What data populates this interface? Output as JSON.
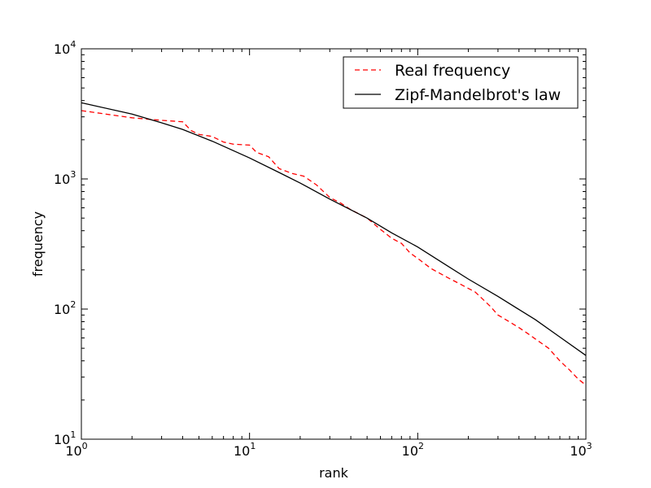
{
  "chart_data": {
    "type": "line",
    "title": "",
    "xlabel": "rank",
    "ylabel": "frequency",
    "xscale": "log",
    "yscale": "log",
    "xlim": [
      1,
      1000
    ],
    "ylim": [
      10,
      10000
    ],
    "grid": false,
    "legend_position": "top-right",
    "x_ticks": [
      {
        "value": 1,
        "base": "10",
        "exp": "0"
      },
      {
        "value": 10,
        "base": "10",
        "exp": "1"
      },
      {
        "value": 100,
        "base": "10",
        "exp": "2"
      },
      {
        "value": 1000,
        "base": "10",
        "exp": "3"
      }
    ],
    "y_ticks": [
      {
        "value": 10,
        "base": "10",
        "exp": "1"
      },
      {
        "value": 100,
        "base": "10",
        "exp": "2"
      },
      {
        "value": 1000,
        "base": "10",
        "exp": "3"
      },
      {
        "value": 10000,
        "base": "10",
        "exp": "4"
      }
    ],
    "series": [
      {
        "name": "Real frequency",
        "color": "#ff0000",
        "style": "dashed",
        "points": [
          [
            1,
            3350
          ],
          [
            2,
            2950
          ],
          [
            3,
            2820
          ],
          [
            4,
            2750
          ],
          [
            4.5,
            2350
          ],
          [
            5,
            2200
          ],
          [
            6,
            2120
          ],
          [
            7,
            1920
          ],
          [
            8,
            1850
          ],
          [
            10,
            1820
          ],
          [
            11,
            1600
          ],
          [
            13,
            1480
          ],
          [
            15,
            1200
          ],
          [
            18,
            1100
          ],
          [
            21,
            1050
          ],
          [
            25,
            900
          ],
          [
            30,
            720
          ],
          [
            35,
            650
          ],
          [
            40,
            580
          ],
          [
            50,
            500
          ],
          [
            60,
            410
          ],
          [
            70,
            350
          ],
          [
            80,
            320
          ],
          [
            90,
            270
          ],
          [
            100,
            245
          ],
          [
            120,
            205
          ],
          [
            150,
            175
          ],
          [
            180,
            155
          ],
          [
            220,
            135
          ],
          [
            270,
            105
          ],
          [
            300,
            90
          ],
          [
            350,
            80
          ],
          [
            400,
            72
          ],
          [
            450,
            65
          ],
          [
            500,
            59
          ],
          [
            600,
            50
          ],
          [
            700,
            40
          ],
          [
            800,
            34
          ],
          [
            900,
            29
          ],
          [
            1000,
            26
          ]
        ]
      },
      {
        "name": "Zipf-Mandelbrot's law",
        "color": "#000000",
        "style": "solid",
        "points": [
          [
            1,
            3850
          ],
          [
            2,
            3150
          ],
          [
            3,
            2700
          ],
          [
            4,
            2400
          ],
          [
            6,
            1950
          ],
          [
            10,
            1450
          ],
          [
            15,
            1120
          ],
          [
            20,
            930
          ],
          [
            30,
            700
          ],
          [
            50,
            500
          ],
          [
            70,
            385
          ],
          [
            100,
            300
          ],
          [
            150,
            215
          ],
          [
            200,
            170
          ],
          [
            300,
            125
          ],
          [
            500,
            83
          ],
          [
            700,
            61
          ],
          [
            1000,
            44
          ]
        ]
      }
    ]
  }
}
